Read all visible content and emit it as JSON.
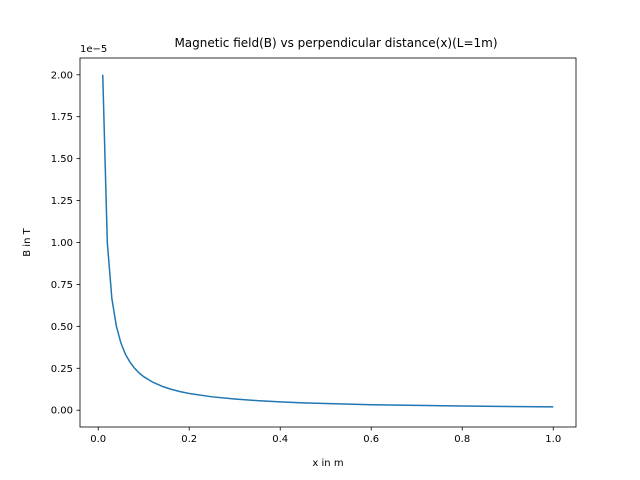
{
  "chart_data": {
    "type": "line",
    "title": "Magnetic field(B) vs perpendicular distance(x)(L=1m)",
    "xlabel": "x in m",
    "ylabel": "B in T",
    "y_offset_label": "1e−5",
    "xlim": [
      -0.04,
      1.05
    ],
    "ylim": [
      -0.1,
      2.1
    ],
    "x_ticks": [
      0.0,
      0.2,
      0.4,
      0.6,
      0.8,
      1.0
    ],
    "x_tick_labels": [
      "0.0",
      "0.2",
      "0.4",
      "0.6",
      "0.8",
      "1.0"
    ],
    "y_ticks": [
      0.0,
      0.25,
      0.5,
      0.75,
      1.0,
      1.25,
      1.5,
      1.75,
      2.0
    ],
    "y_tick_labels": [
      "0.00",
      "0.25",
      "0.50",
      "0.75",
      "1.00",
      "1.25",
      "1.50",
      "1.75",
      "2.00"
    ],
    "grid": false,
    "series": [
      {
        "color": "#1f77b4",
        "x": [
          0.01,
          0.02,
          0.03,
          0.04,
          0.05,
          0.06,
          0.07,
          0.08,
          0.09,
          0.1,
          0.12,
          0.14,
          0.16,
          0.18,
          0.2,
          0.25,
          0.3,
          0.35,
          0.4,
          0.45,
          0.5,
          0.6,
          0.7,
          0.8,
          0.9,
          1.0
        ],
        "y": [
          2.0,
          1.0,
          0.667,
          0.5,
          0.4,
          0.333,
          0.286,
          0.25,
          0.222,
          0.2,
          0.167,
          0.143,
          0.125,
          0.111,
          0.1,
          0.08,
          0.067,
          0.057,
          0.05,
          0.044,
          0.04,
          0.033,
          0.029,
          0.025,
          0.022,
          0.02
        ]
      }
    ]
  }
}
